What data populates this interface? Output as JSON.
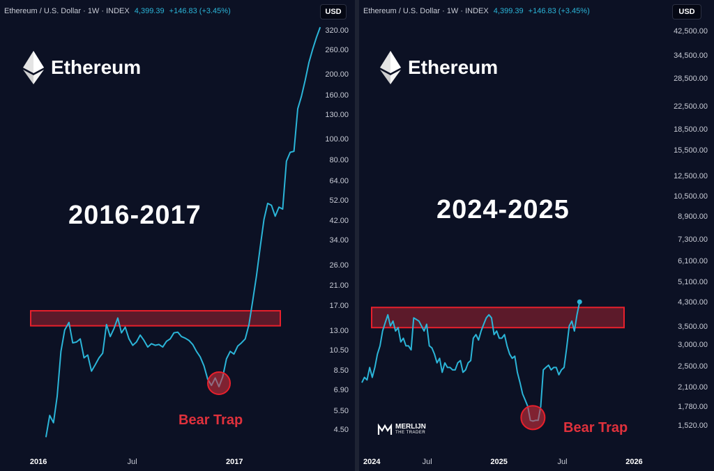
{
  "panels": [
    {
      "header": {
        "symbol": "Ethereum / U.S. Dollar · 1W · INDEX",
        "price": "4,399.39",
        "change": "+146.83 (+3.45%)"
      },
      "currency": "USD",
      "brand": "Ethereum",
      "period": "2016-2017",
      "bear_trap_label": "Bear Trap",
      "colors": {
        "line": "#2bb5d8",
        "zone_fill": "#6b1c2c",
        "zone_border": "#e8202c",
        "marker": "#e0313c"
      }
    },
    {
      "header": {
        "symbol": "Ethereum / U.S. Dollar · 1W · INDEX",
        "price": "4,399.39",
        "change": "+146.83 (+3.45%)"
      },
      "currency": "USD",
      "brand": "Ethereum",
      "period": "2024-2025",
      "bear_trap_label": "Bear Trap",
      "watermark": {
        "line1": "MERLIJN",
        "line2": "THE TRADER"
      },
      "colors": {
        "line": "#2bb5d8",
        "zone_fill": "#6b1c2c",
        "zone_border": "#e8202c",
        "marker": "#e0313c"
      }
    }
  ],
  "chart_data": [
    {
      "type": "line",
      "y_scale": "log",
      "ylim": [
        4,
        340
      ],
      "y_ticks": [
        "320.00",
        "260.00",
        "200.00",
        "160.00",
        "130.00",
        "100.00",
        "80.00",
        "64.00",
        "52.00",
        "42.00",
        "34.00",
        "26.00",
        "21.00",
        "17.00",
        "13.00",
        "10.50",
        "8.50",
        "6.90",
        "5.50",
        "4.50"
      ],
      "x_ticks": [
        {
          "label": "2016",
          "bold": true,
          "x": "2016-01"
        },
        {
          "label": "Jul",
          "bold": false,
          "x": "2016-07"
        },
        {
          "label": "2017",
          "bold": true,
          "x": "2017-01"
        }
      ],
      "xlim": [
        "2015-11",
        "2017-06"
      ],
      "resistance_zone": [
        13.8,
        16.2
      ],
      "series": [
        {
          "x": [
            "2016-01-18",
            "2016-01-25",
            "2016-02-01",
            "2016-02-08",
            "2016-02-15",
            "2016-02-22",
            "2016-03-01",
            "2016-03-08",
            "2016-03-15",
            "2016-03-22",
            "2016-03-29",
            "2016-04-05",
            "2016-04-12",
            "2016-04-19",
            "2016-04-26",
            "2016-05-03",
            "2016-05-10",
            "2016-05-17",
            "2016-05-24",
            "2016-05-31",
            "2016-06-07",
            "2016-06-14",
            "2016-06-21",
            "2016-06-28",
            "2016-07-05",
            "2016-07-12",
            "2016-07-19",
            "2016-07-26",
            "2016-08-02",
            "2016-08-09",
            "2016-08-16",
            "2016-08-23",
            "2016-08-30",
            "2016-09-06",
            "2016-09-13",
            "2016-09-20",
            "2016-09-27",
            "2016-10-04",
            "2016-10-11",
            "2016-10-18",
            "2016-10-25",
            "2016-11-01",
            "2016-11-08",
            "2016-11-15",
            "2016-11-22",
            "2016-11-29",
            "2016-12-06",
            "2016-12-13",
            "2016-12-20",
            "2016-12-27",
            "2017-01-03",
            "2017-01-10",
            "2017-01-17",
            "2017-01-24",
            "2017-01-31",
            "2017-02-07",
            "2017-02-14",
            "2017-02-21",
            "2017-02-28",
            "2017-03-07",
            "2017-03-14",
            "2017-03-21",
            "2017-03-28",
            "2017-04-04",
            "2017-04-11",
            "2017-04-18",
            "2017-04-25",
            "2017-05-02",
            "2017-05-09",
            "2017-05-16",
            "2017-05-23",
            "2017-05-30",
            "2017-06-06",
            "2017-06-13"
          ],
          "values": [
            4.2,
            5.3,
            4.9,
            6.5,
            10.5,
            13.2,
            14.3,
            11.5,
            11.6,
            12.0,
            9.8,
            10.1,
            8.5,
            9.1,
            9.8,
            10.3,
            14.0,
            12.3,
            13.4,
            15.0,
            12.8,
            13.6,
            12.0,
            11.2,
            11.6,
            12.5,
            11.8,
            11.0,
            11.4,
            11.2,
            11.3,
            11.0,
            11.7,
            12.0,
            12.8,
            12.9,
            12.3,
            12.1,
            11.8,
            11.3,
            10.5,
            9.9,
            9.0,
            7.8,
            7.3,
            7.9,
            7.2,
            8.0,
            9.7,
            10.5,
            10.2,
            11.1,
            11.5,
            12.0,
            14.0,
            18.0,
            23.5,
            32.0,
            43.0,
            51.0,
            50.0,
            44.5,
            49.0,
            48.0,
            80.0,
            88.0,
            89.0,
            140.0,
            160.0,
            190.0,
            230.0,
            265.0,
            300.0,
            335.0
          ]
        }
      ]
    },
    {
      "type": "line",
      "y_scale": "log",
      "ylim": [
        1400,
        45000
      ],
      "y_ticks": [
        "42,500.00",
        "34,500.00",
        "28,500.00",
        "22,500.00",
        "18,500.00",
        "15,500.00",
        "12,500.00",
        "10,500.00",
        "8,900.00",
        "7,300.00",
        "6,100.00",
        "5,100.00",
        "4,300.00",
        "3,500.00",
        "3,000.00",
        "2,500.00",
        "2,100.00",
        "1,780.00",
        "1,520.00"
      ],
      "x_ticks": [
        {
          "label": "2024",
          "bold": true,
          "x": "2024-01"
        },
        {
          "label": "Jul",
          "bold": false,
          "x": "2024-07"
        },
        {
          "label": "2025",
          "bold": true,
          "x": "2025-01"
        },
        {
          "label": "Jul",
          "bold": false,
          "x": "2025-07"
        },
        {
          "label": "2026",
          "bold": true,
          "x": "2026-01"
        }
      ],
      "xlim": [
        "2024-01",
        "2026-04"
      ],
      "resistance_zone": [
        3500,
        4150
      ],
      "series": [
        {
          "x": [
            "2024-01-01",
            "2024-01-08",
            "2024-01-15",
            "2024-01-22",
            "2024-01-29",
            "2024-02-05",
            "2024-02-12",
            "2024-02-19",
            "2024-02-26",
            "2024-03-04",
            "2024-03-11",
            "2024-03-18",
            "2024-03-25",
            "2024-04-01",
            "2024-04-08",
            "2024-04-15",
            "2024-04-22",
            "2024-04-29",
            "2024-05-06",
            "2024-05-13",
            "2024-05-20",
            "2024-05-27",
            "2024-06-03",
            "2024-06-10",
            "2024-06-17",
            "2024-06-24",
            "2024-07-01",
            "2024-07-08",
            "2024-07-15",
            "2024-07-22",
            "2024-07-29",
            "2024-08-05",
            "2024-08-12",
            "2024-08-19",
            "2024-08-26",
            "2024-09-02",
            "2024-09-09",
            "2024-09-16",
            "2024-09-23",
            "2024-09-30",
            "2024-10-07",
            "2024-10-14",
            "2024-10-21",
            "2024-10-28",
            "2024-11-04",
            "2024-11-11",
            "2024-11-18",
            "2024-11-25",
            "2024-12-02",
            "2024-12-09",
            "2024-12-16",
            "2024-12-23",
            "2024-12-30",
            "2025-01-06",
            "2025-01-13",
            "2025-01-20",
            "2025-01-27",
            "2025-02-03",
            "2025-02-10",
            "2025-02-17",
            "2025-02-24",
            "2025-03-03",
            "2025-03-10",
            "2025-03-17",
            "2025-03-24",
            "2025-03-31",
            "2025-04-07",
            "2025-04-14",
            "2025-04-21",
            "2025-04-28",
            "2025-05-05",
            "2025-05-12",
            "2025-05-19",
            "2025-05-26",
            "2025-06-02",
            "2025-06-09",
            "2025-06-16",
            "2025-06-23",
            "2025-06-30",
            "2025-07-07",
            "2025-07-14",
            "2025-07-21",
            "2025-07-28",
            "2025-08-04",
            "2025-08-11"
          ],
          "values": [
            2200,
            2300,
            2250,
            2500,
            2300,
            2500,
            2800,
            3000,
            3400,
            3650,
            3900,
            3550,
            3700,
            3400,
            3500,
            3100,
            3200,
            3000,
            3000,
            2900,
            3800,
            3750,
            3700,
            3550,
            3400,
            3600,
            3000,
            2950,
            2800,
            2600,
            2700,
            2400,
            2600,
            2500,
            2500,
            2450,
            2450,
            2600,
            2650,
            2400,
            2450,
            2600,
            2650,
            3200,
            3300,
            3150,
            3400,
            3600,
            3800,
            3900,
            3800,
            3300,
            3400,
            3200,
            3200,
            3300,
            3000,
            2800,
            2700,
            2750,
            2400,
            2200,
            2000,
            1900,
            1800,
            1600,
            1590,
            1600,
            1600,
            1800,
            2450,
            2500,
            2550,
            2450,
            2500,
            2500,
            2350,
            2450,
            2500,
            2950,
            3550,
            3700,
            3400,
            3900,
            4350
          ]
        }
      ]
    }
  ]
}
